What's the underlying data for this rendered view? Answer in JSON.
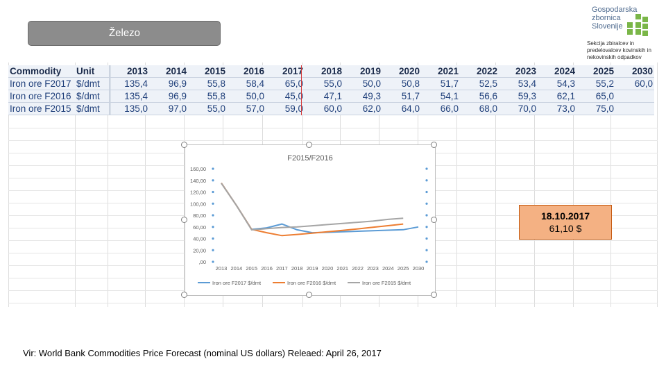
{
  "slide": {
    "title": "Železo",
    "source": "Vir: World Bank Commodities Price Forecast (nominal US dollars) Releaed: April 26, 2017"
  },
  "logo": {
    "org": "Gospodarska zbornica Slovenije",
    "section": "Sekcija zbiralcev in predelovalcev kovinskih in nekovinskih odpadkov",
    "colors": {
      "text": "#4f6b8f",
      "mark": "#7ab648"
    }
  },
  "table": {
    "headers": [
      "Commodity",
      "Unit",
      "2013",
      "2014",
      "2015",
      "2016",
      "2017",
      "2018",
      "2019",
      "2020",
      "2021",
      "2022",
      "2023",
      "2024",
      "2025",
      "2030"
    ],
    "rows": [
      [
        "Iron ore F2017",
        "$/dmt",
        "135,4",
        "96,9",
        "55,8",
        "58,4",
        "65,0",
        "55,0",
        "50,0",
        "50,8",
        "51,7",
        "52,5",
        "53,4",
        "54,3",
        "55,2",
        "60,0"
      ],
      [
        "Iron ore F2016",
        "$/dmt",
        "135,4",
        "96,9",
        "55,8",
        "50,0",
        "45,0",
        "47,1",
        "49,3",
        "51,7",
        "54,1",
        "56,6",
        "59,3",
        "62,1",
        "65,0",
        ""
      ],
      [
        "Iron ore F2015",
        "$/dmt",
        "135,0",
        "97,0",
        "55,0",
        "57,0",
        "59,0",
        "60,0",
        "62,0",
        "64,0",
        "66,0",
        "68,0",
        "70,0",
        "73,0",
        "75,0",
        ""
      ]
    ]
  },
  "callout": {
    "date": "18.10.2017",
    "value": "61,10 $",
    "color": "#f4b183"
  },
  "chart_data": {
    "type": "line",
    "title": "F2015/F2016",
    "categories": [
      "2013",
      "2014",
      "2015",
      "2016",
      "2017",
      "2018",
      "2019",
      "2020",
      "2021",
      "2022",
      "2023",
      "2024",
      "2025",
      "2030"
    ],
    "ylim": [
      0,
      160
    ],
    "yticks": [
      ",00",
      "20,00",
      "40,00",
      "60,00",
      "80,00",
      "100,00",
      "120,00",
      "140,00",
      "160,00"
    ],
    "legend_position": "bottom",
    "series": [
      {
        "name": "Iron ore F2017 $/dmt",
        "color": "#5b9bd5",
        "values": [
          135.4,
          96.9,
          55.8,
          58.4,
          65.0,
          55.0,
          50.0,
          50.8,
          51.7,
          52.5,
          53.4,
          54.3,
          55.2,
          60.0
        ]
      },
      {
        "name": "Iron ore F2016 $/dmt",
        "color": "#ed7d31",
        "values": [
          135.4,
          96.9,
          55.8,
          50.0,
          45.0,
          47.1,
          49.3,
          51.7,
          54.1,
          56.6,
          59.3,
          62.1,
          65.0,
          null
        ]
      },
      {
        "name": "Iron ore F2015 $/dmt",
        "color": "#a5a5a5",
        "values": [
          135.0,
          97.0,
          55.0,
          57.0,
          59.0,
          60.0,
          62.0,
          64.0,
          66.0,
          68.0,
          70.0,
          73.0,
          75.0,
          null
        ]
      }
    ]
  }
}
